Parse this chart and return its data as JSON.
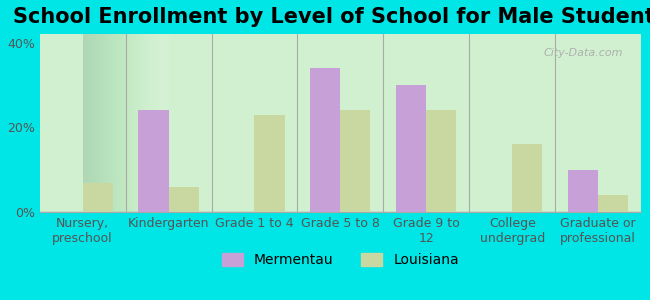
{
  "title": "School Enrollment by Level of School for Male Students",
  "categories": [
    "Nursery,\npreschool",
    "Kindergarten",
    "Grade 1 to 4",
    "Grade 5 to 8",
    "Grade 9 to\n12",
    "College\nundergrad",
    "Graduate or\nprofessional"
  ],
  "mermentau": [
    0,
    24,
    0,
    34,
    30,
    0,
    10
  ],
  "louisiana": [
    7,
    6,
    23,
    24,
    24,
    16,
    4
  ],
  "mermentau_color": "#c8a0d8",
  "louisiana_color": "#c8d8a0",
  "bar_width": 0.35,
  "ylim": [
    0,
    42
  ],
  "yticks": [
    0,
    20,
    40
  ],
  "ytick_labels": [
    "0%",
    "20%",
    "40%"
  ],
  "legend_labels": [
    "Mermentau",
    "Louisiana"
  ],
  "background_color": "#00e5e5",
  "plot_bg_start": "#f0fff0",
  "plot_bg_end": "#ffffff",
  "title_fontsize": 15,
  "tick_fontsize": 9,
  "legend_fontsize": 10
}
